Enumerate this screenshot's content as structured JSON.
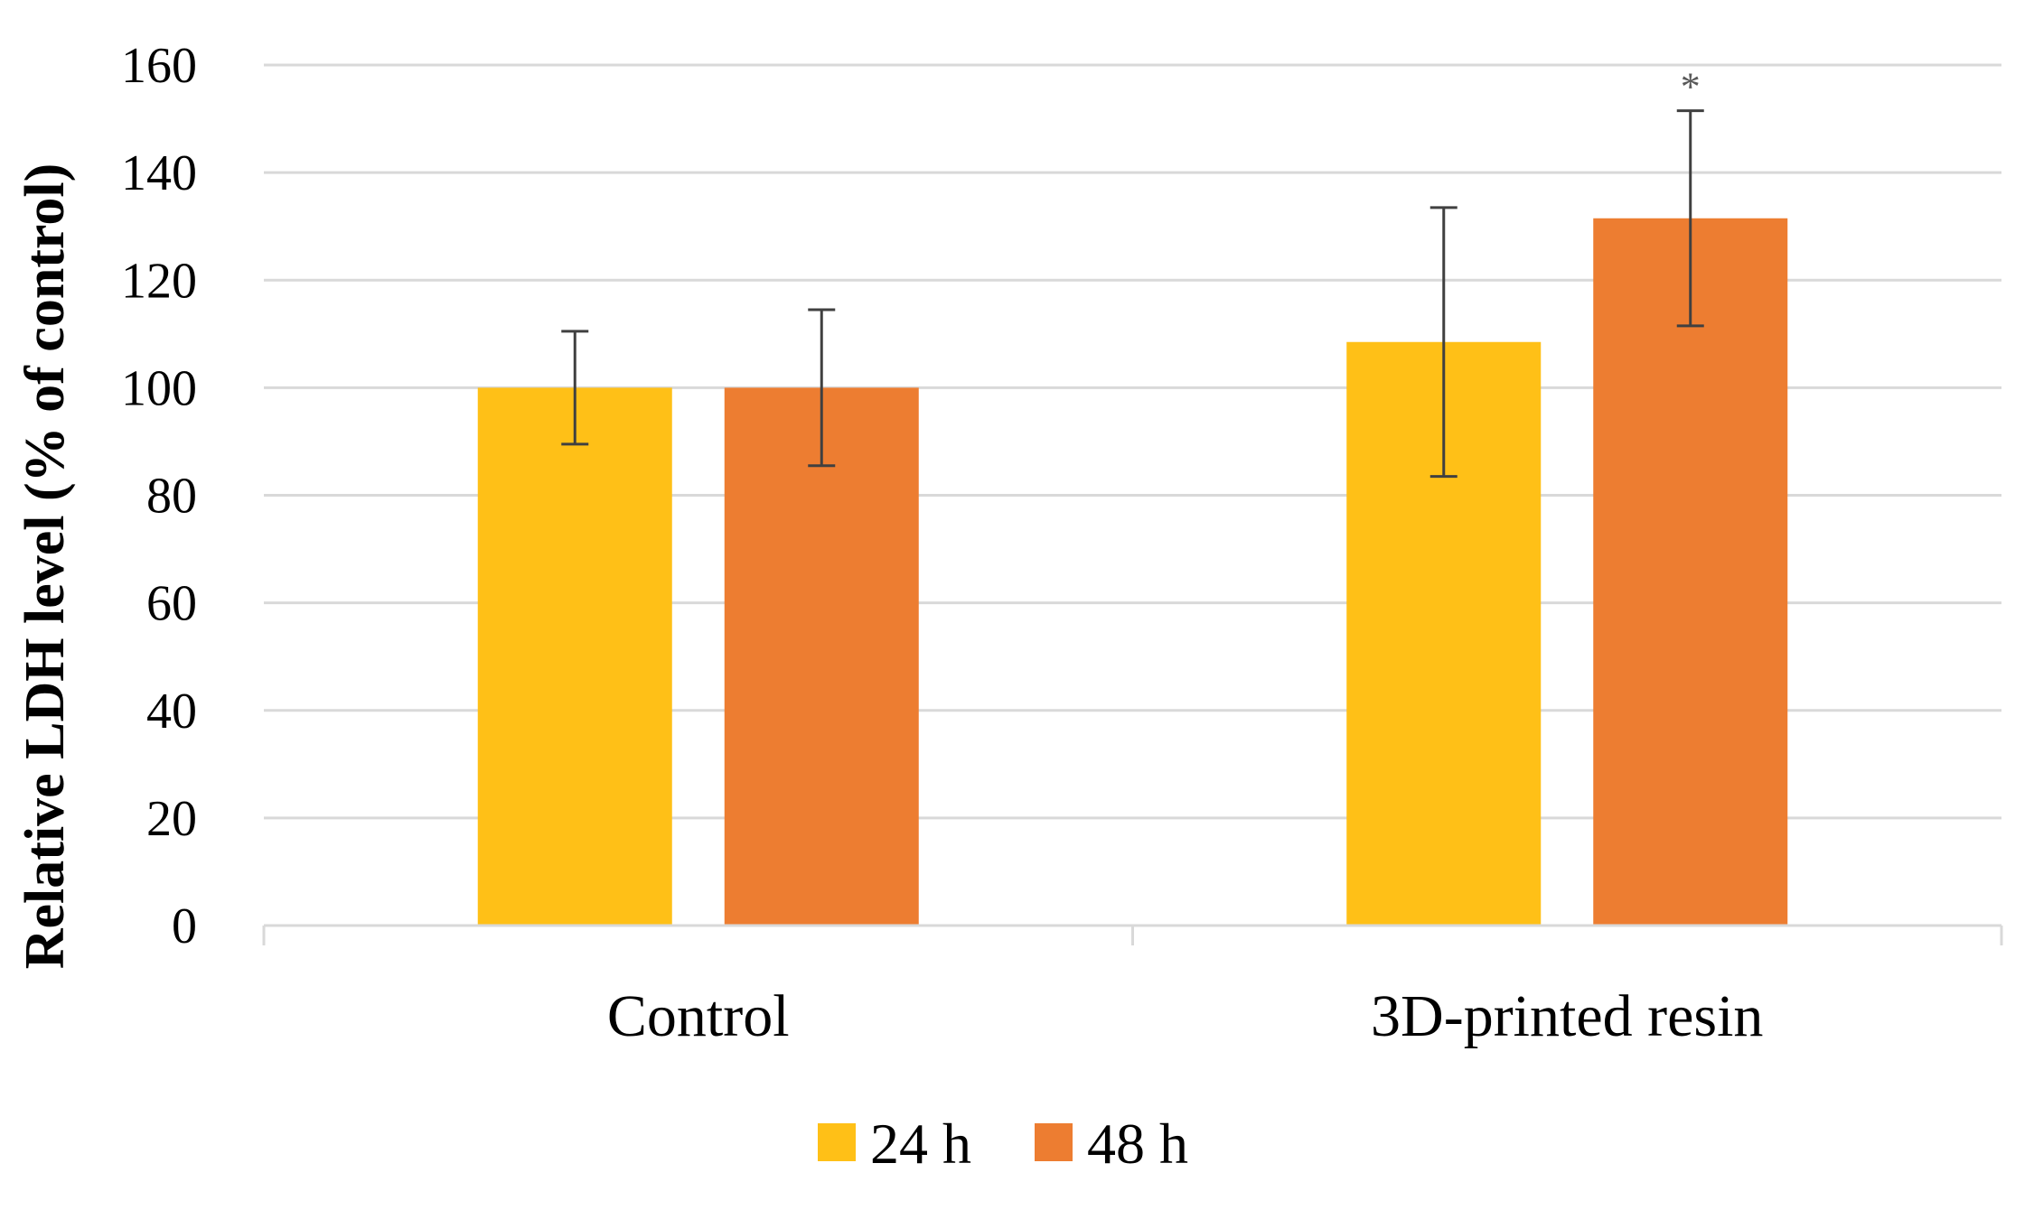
{
  "chart_data": {
    "type": "bar",
    "title": "",
    "xlabel": "",
    "ylabel": "Relative LDH level (% of control)",
    "ylim": [
      0,
      160
    ],
    "yticks": [
      0,
      20,
      40,
      60,
      80,
      100,
      120,
      140,
      160
    ],
    "grid": true,
    "categories": [
      "Control",
      "3D-printed resin"
    ],
    "series": [
      {
        "name": "24 h",
        "color": "#FFC017",
        "values": [
          100,
          108.5
        ],
        "errors": [
          10.5,
          25
        ]
      },
      {
        "name": "48 h",
        "color": "#ED7D31",
        "values": [
          100,
          131.5
        ],
        "errors": [
          14.5,
          20
        ]
      }
    ],
    "annotations": [
      {
        "category": "3D-printed resin",
        "series": "48 h",
        "text": "*"
      }
    ],
    "legend_position": "bottom-center"
  }
}
